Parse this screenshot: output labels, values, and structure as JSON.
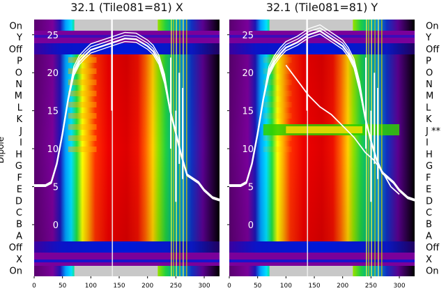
{
  "chart_data": {
    "type": "heatmap",
    "x_ticks": [
      0,
      50,
      100,
      150,
      200,
      250,
      300
    ],
    "xlim": [
      0,
      327
    ],
    "y_ticks": [
      0,
      5,
      10,
      15,
      20,
      25
    ],
    "ylim": [
      -6.8,
      27
    ],
    "ylabel": "Dipole",
    "dipole_labels_left": [
      "On",
      "Y",
      "Off",
      "P",
      "O",
      "N",
      "M",
      "L",
      "K",
      "J",
      "I",
      "H",
      "G",
      "F",
      "E",
      "D",
      "C",
      "B",
      "A",
      "Off",
      "X",
      "On"
    ],
    "dipole_labels_right": [
      "On",
      "Y",
      "Off",
      "P",
      "O",
      "N",
      "M",
      "L",
      "K",
      "J **",
      "I",
      "H",
      "G",
      "F",
      "E",
      "D",
      "C",
      "B",
      "A",
      "Off",
      "X",
      "On"
    ],
    "panels": [
      {
        "title": "32.1 (Tile081=81) X",
        "bandpass": [
          [
            0,
            5.1
          ],
          [
            20,
            5.1
          ],
          [
            30,
            5.5
          ],
          [
            40,
            8
          ],
          [
            50,
            12
          ],
          [
            60,
            16.5
          ],
          [
            70,
            20
          ],
          [
            80,
            21.5
          ],
          [
            90,
            22.3
          ],
          [
            100,
            23
          ],
          [
            120,
            23.5
          ],
          [
            140,
            24
          ],
          [
            160,
            24.5
          ],
          [
            180,
            24.4
          ],
          [
            200,
            23.5
          ],
          [
            210,
            22.8
          ],
          [
            220,
            21.5
          ],
          [
            230,
            19
          ],
          [
            240,
            15
          ],
          [
            250,
            12
          ],
          [
            260,
            9
          ],
          [
            270,
            6.5
          ],
          [
            290,
            5.5
          ],
          [
            300,
            4.5
          ],
          [
            315,
            3.5
          ],
          [
            327,
            3.2
          ]
        ],
        "secondary": []
      },
      {
        "title": "32.1 (Tile081=81) Y",
        "bandpass": [
          [
            0,
            5.1
          ],
          [
            20,
            5.1
          ],
          [
            30,
            5.5
          ],
          [
            40,
            8
          ],
          [
            50,
            12
          ],
          [
            60,
            16.5
          ],
          [
            70,
            20
          ],
          [
            80,
            21.5
          ],
          [
            90,
            22.5
          ],
          [
            100,
            23.3
          ],
          [
            120,
            24
          ],
          [
            140,
            25
          ],
          [
            160,
            25.5
          ],
          [
            180,
            24.5
          ],
          [
            200,
            23.5
          ],
          [
            210,
            22.5
          ],
          [
            220,
            21
          ],
          [
            230,
            18
          ],
          [
            240,
            14
          ],
          [
            250,
            11
          ],
          [
            260,
            8.5
          ],
          [
            270,
            6.8
          ],
          [
            290,
            5.5
          ],
          [
            300,
            4.5
          ],
          [
            315,
            3.5
          ],
          [
            327,
            3.2
          ]
        ],
        "secondary": [
          [
            100,
            21
          ],
          [
            120,
            19
          ],
          [
            140,
            17
          ],
          [
            160,
            15.5
          ],
          [
            180,
            14.5
          ],
          [
            200,
            13
          ],
          [
            220,
            11.5
          ],
          [
            240,
            9.5
          ],
          [
            255,
            8.5
          ],
          [
            270,
            7
          ],
          [
            285,
            5
          ],
          [
            300,
            4
          ]
        ]
      }
    ]
  }
}
